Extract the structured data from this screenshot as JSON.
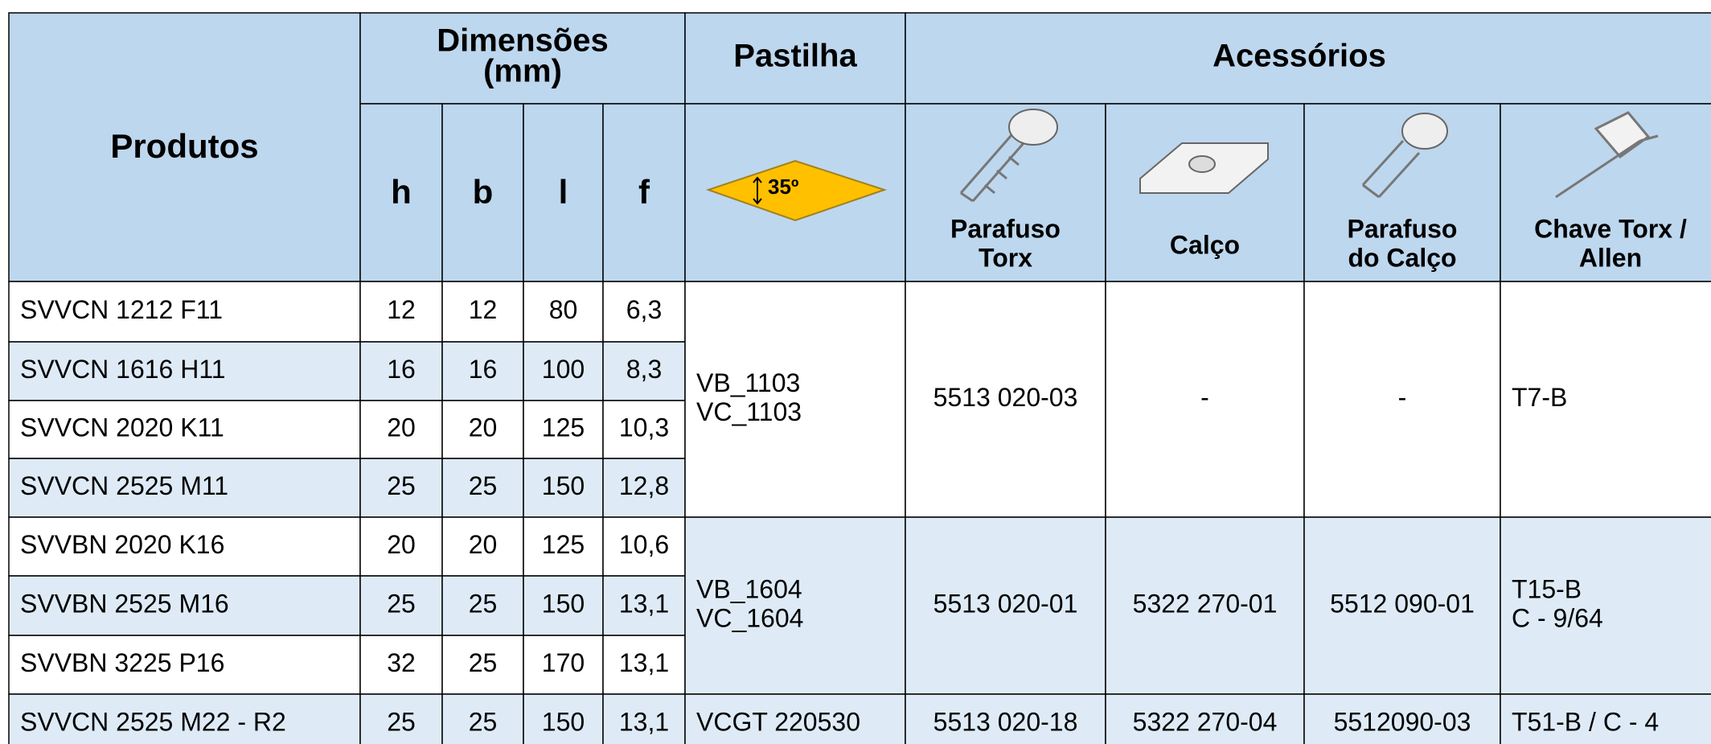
{
  "header": {
    "produtos": "Produtos",
    "dimensoes": [
      "Dimensões",
      "(mm)"
    ],
    "pastilha": "Pastilha",
    "acessorios": "Acessórios",
    "dims": [
      "h",
      "b",
      "l",
      "f"
    ],
    "angle": "35º",
    "accessories": [
      [
        "Parafuso",
        "Torx"
      ],
      [
        "Calço"
      ],
      [
        "Parafuso",
        "do Calço"
      ],
      [
        "Chave Torx /",
        "Allen"
      ]
    ]
  },
  "rows": [
    [
      "SVVCN 1212 F11",
      "12",
      "12",
      "80",
      "6,3"
    ],
    [
      "SVVCN 1616 H11",
      "16",
      "16",
      "100",
      "8,3"
    ],
    [
      "SVVCN 2020 K11",
      "20",
      "20",
      "125",
      "10,3"
    ],
    [
      "SVVCN 2525 M11",
      "25",
      "25",
      "150",
      "12,8"
    ],
    [
      "SVVBN 2020 K16",
      "20",
      "20",
      "125",
      "10,6"
    ],
    [
      "SVVBN 2525 M16",
      "25",
      "25",
      "150",
      "13,1"
    ],
    [
      "SVVBN 3225 P16",
      "32",
      "25",
      "170",
      "13,1"
    ],
    [
      "SVVCN 2525 M22 - R2",
      "25",
      "25",
      "150",
      "13,1"
    ]
  ],
  "groups": [
    {
      "pastilha": [
        "VB_1103",
        "VC_1103"
      ],
      "accessories": [
        "5513 020-03",
        "-",
        "-",
        [
          "T7-B"
        ]
      ]
    },
    {
      "pastilha": [
        "VB_1604",
        "VC_1604"
      ],
      "accessories": [
        "5513 020-01",
        "5322 270-01",
        "5512 090-01",
        [
          "T15-B",
          "C - 9/64"
        ]
      ]
    },
    {
      "pastilha": [
        "VCGT 220530"
      ],
      "accessories": [
        "5513 020-18",
        "5322 270-04",
        "5512090-03",
        [
          "T51-B / C - 4"
        ]
      ]
    }
  ]
}
